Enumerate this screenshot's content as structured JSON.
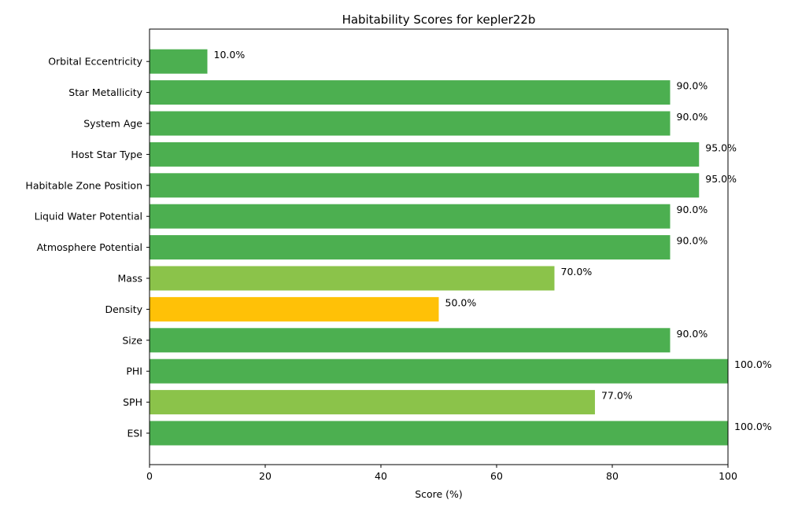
{
  "chart_data": {
    "type": "bar",
    "orientation": "horizontal",
    "title": "Habitability Scores for kepler22b",
    "xlabel": "Score (%)",
    "ylabel": "",
    "xlim": [
      0,
      100
    ],
    "xticks": [
      0,
      20,
      40,
      60,
      80,
      100
    ],
    "grid": false,
    "legend": "none",
    "categories": [
      "ESI",
      "SPH",
      "PHI",
      "Size",
      "Density",
      "Mass",
      "Atmosphere Potential",
      "Liquid Water Potential",
      "Habitable Zone Position",
      "Host Star Type",
      "System Age",
      "Star Metallicity",
      "Orbital Eccentricity"
    ],
    "values": [
      100.0,
      77.0,
      100.0,
      90.0,
      50.0,
      70.0,
      90.0,
      90.0,
      95.0,
      95.0,
      90.0,
      90.0,
      10.0
    ],
    "value_labels": [
      "100.0%",
      "77.0%",
      "100.0%",
      "90.0%",
      "50.0%",
      "70.0%",
      "90.0%",
      "90.0%",
      "95.0%",
      "95.0%",
      "90.0%",
      "90.0%",
      "10.0%"
    ],
    "colors": [
      "#4caf50",
      "#8bc34a",
      "#4caf50",
      "#4caf50",
      "#ffc107",
      "#8bc34a",
      "#4caf50",
      "#4caf50",
      "#4caf50",
      "#4caf50",
      "#4caf50",
      "#4caf50",
      "#4caf50"
    ]
  }
}
